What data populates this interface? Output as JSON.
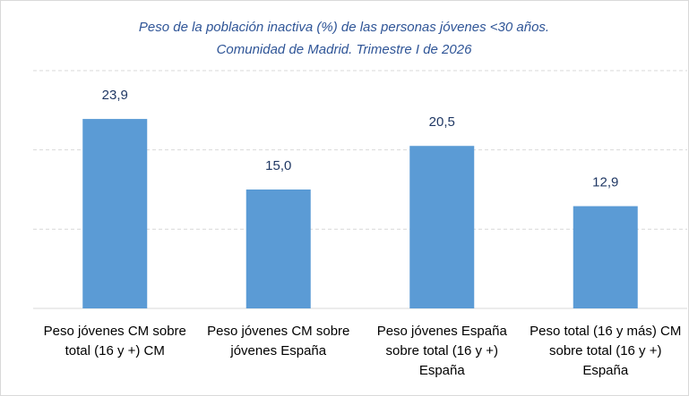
{
  "chart_data": {
    "type": "bar",
    "title": [
      "Peso de la población inactiva (%) de las personas jóvenes <30 años.",
      "Comunidad de Madrid. Trimestre I de 2026"
    ],
    "categories": [
      "Peso jóvenes CM sobre total (16 y +) CM",
      "Peso jóvenes CM sobre jóvenes España",
      "Peso jóvenes España sobre total (16 y +) España",
      "Peso total (16 y más) CM sobre total (16 y +) España"
    ],
    "values": [
      23.9,
      15.0,
      20.5,
      12.9
    ],
    "value_labels": [
      "23,9",
      "15,0",
      "20,5",
      "12,9"
    ],
    "color": "#5b9bd5",
    "ylim": [
      0,
      30
    ],
    "yticks": [
      0,
      10,
      20,
      30
    ],
    "grid": true
  }
}
